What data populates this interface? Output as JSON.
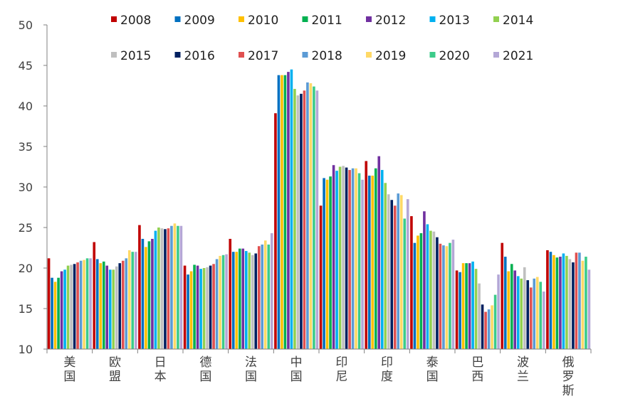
{
  "chart_data": {
    "type": "bar",
    "title": "",
    "xlabel": "",
    "ylabel": "",
    "ylim": [
      10,
      50
    ],
    "yticks": [
      10,
      15,
      20,
      25,
      30,
      35,
      40,
      45,
      50
    ],
    "grid": false,
    "legend_position": "top",
    "categories": [
      "美\n国",
      "欧\n盟",
      "日\n本",
      "德\n国",
      "法\n国",
      "中\n国",
      "印\n尼",
      "印\n度",
      "泰\n国",
      "巴\n西",
      "波\n兰",
      "俄\n罗\n斯"
    ],
    "series": [
      {
        "name": "2008",
        "color": "#C00000",
        "values": [
          21.2,
          23.2,
          25.3,
          20.3,
          23.6,
          39.1,
          27.7,
          33.2,
          26.4,
          19.7,
          23.1,
          22.2
        ]
      },
      {
        "name": "2009",
        "color": "#0070C0",
        "values": [
          18.8,
          21.1,
          23.6,
          19.2,
          22.0,
          43.8,
          31.1,
          31.4,
          23.1,
          19.5,
          21.4,
          22.0
        ]
      },
      {
        "name": "2010",
        "color": "#FFC000",
        "values": [
          18.3,
          20.6,
          22.6,
          19.6,
          22.0,
          43.8,
          30.9,
          31.4,
          24.0,
          20.6,
          19.6,
          21.6
        ]
      },
      {
        "name": "2011",
        "color": "#00B050",
        "values": [
          18.8,
          20.8,
          23.3,
          20.4,
          22.4,
          43.8,
          31.3,
          32.3,
          24.3,
          20.6,
          20.5,
          21.3
        ]
      },
      {
        "name": "2012",
        "color": "#7030A0",
        "values": [
          19.6,
          20.3,
          23.6,
          20.3,
          22.4,
          44.2,
          32.7,
          33.8,
          27.0,
          20.6,
          19.7,
          21.4
        ]
      },
      {
        "name": "2013",
        "color": "#00B0F0",
        "values": [
          19.8,
          19.8,
          24.6,
          19.9,
          22.1,
          44.5,
          32.0,
          32.1,
          25.4,
          20.8,
          19.0,
          21.8
        ]
      },
      {
        "name": "2014",
        "color": "#92D050",
        "values": [
          20.3,
          19.8,
          25.0,
          20.0,
          21.9,
          42.1,
          32.5,
          30.5,
          24.6,
          19.9,
          18.7,
          21.5
        ]
      },
      {
        "name": "2015",
        "color": "#BFBFBF",
        "values": [
          20.4,
          20.2,
          24.9,
          20.1,
          21.6,
          41.3,
          32.6,
          29.1,
          24.5,
          18.1,
          20.1,
          21.1
        ]
      },
      {
        "name": "2016",
        "color": "#002060",
        "values": [
          20.5,
          20.6,
          24.8,
          20.3,
          21.8,
          41.5,
          32.4,
          28.4,
          23.8,
          15.5,
          18.5,
          20.7
        ]
      },
      {
        "name": "2017",
        "color": "#E05050",
        "values": [
          20.7,
          20.9,
          24.9,
          20.5,
          22.7,
          41.9,
          32.1,
          27.7,
          23.0,
          14.6,
          17.6,
          21.9
        ]
      },
      {
        "name": "2018",
        "color": "#5B9BD5",
        "values": [
          20.9,
          21.2,
          25.2,
          21.1,
          22.9,
          42.9,
          32.3,
          29.2,
          22.8,
          14.9,
          18.7,
          21.9
        ]
      },
      {
        "name": "2019",
        "color": "#FFD966",
        "values": [
          21.0,
          22.2,
          25.5,
          21.5,
          23.4,
          42.8,
          32.3,
          29.0,
          22.7,
          15.4,
          18.9,
          20.9
        ]
      },
      {
        "name": "2020",
        "color": "#3CCB8A",
        "values": [
          21.2,
          22.0,
          25.2,
          21.6,
          22.9,
          42.4,
          31.7,
          26.1,
          23.1,
          16.7,
          18.3,
          21.4
        ]
      },
      {
        "name": "2021",
        "color": "#B4A7D6",
        "values": [
          21.2,
          22.0,
          25.2,
          21.7,
          24.3,
          41.9,
          30.9,
          28.5,
          23.5,
          19.2,
          17.1,
          19.8
        ]
      }
    ]
  }
}
